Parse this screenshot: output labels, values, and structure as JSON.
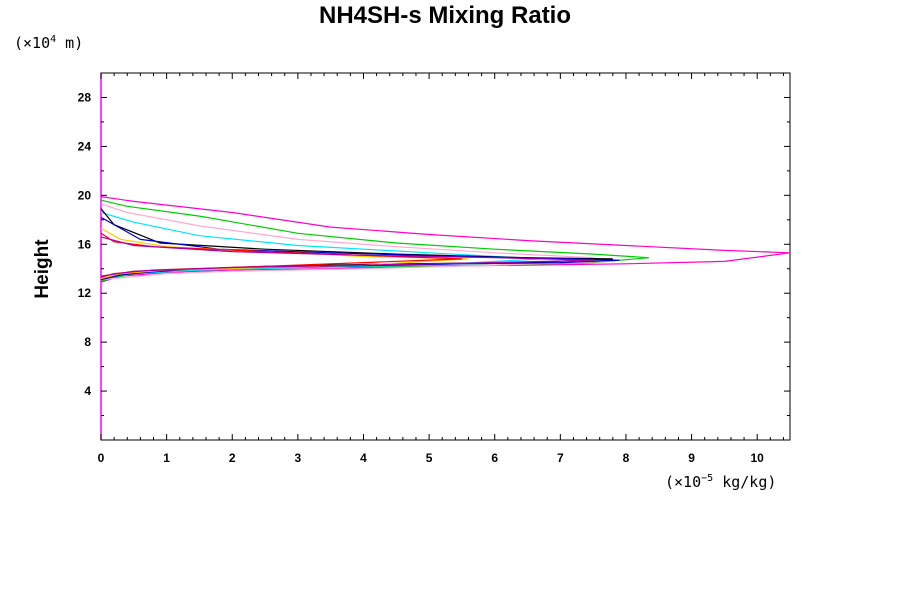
{
  "chart_data": {
    "type": "line",
    "title": "NH4SH-s Mixing Ratio",
    "ylabel": "Height",
    "y_units": {
      "prefix": "(×10",
      "exp": "4",
      "suffix": " m)"
    },
    "x_units": {
      "prefix": "(×10",
      "exp": "−5",
      "suffix": " kg/kg)"
    },
    "xlim": [
      0,
      10.5
    ],
    "ylim": [
      0,
      30
    ],
    "x_ticks": [
      0,
      1,
      2,
      3,
      4,
      5,
      6,
      7,
      8,
      9,
      10
    ],
    "y_ticks": [
      4,
      8,
      12,
      16,
      20,
      24,
      28
    ],
    "x_tick_labels": [
      "0",
      "1",
      "2",
      "3",
      "4",
      "5",
      "6",
      "7",
      "8",
      "9",
      "10"
    ],
    "y_tick_labels": [
      "4",
      "8",
      "12",
      "16",
      "20",
      "24",
      "28"
    ],
    "grid": false,
    "axis_color": "#ff00ff",
    "series": [
      {
        "color": "#ff00cc",
        "x": [
          0,
          0.5,
          2,
          3.5,
          5,
          6.5,
          8,
          9.5,
          10.5,
          9.5,
          8,
          6.5,
          5,
          3.5,
          2,
          1,
          0.3,
          0
        ],
        "y": [
          19.9,
          19.5,
          18.6,
          17.4,
          16.8,
          16.3,
          15.9,
          15.5,
          15.3,
          14.6,
          14.4,
          14.3,
          14.2,
          14.0,
          13.9,
          13.7,
          13.4,
          12.9
        ]
      },
      {
        "color": "#00cc00",
        "x": [
          0,
          0.4,
          1.5,
          3,
          4.5,
          6,
          7.5,
          8.35,
          7.5,
          6,
          4.5,
          3,
          1.5,
          0.5,
          0
        ],
        "y": [
          19.6,
          19.1,
          18.3,
          16.9,
          16.1,
          15.6,
          15.2,
          14.9,
          14.5,
          14.3,
          14.2,
          14.1,
          13.9,
          13.6,
          13.0
        ]
      },
      {
        "color": "#ffaacc",
        "x": [
          0,
          0.4,
          1.5,
          3,
          4.5,
          6,
          7.5,
          7.8,
          6,
          4,
          2,
          1,
          0
        ],
        "y": [
          19.3,
          18.6,
          17.5,
          16.4,
          15.8,
          15.3,
          14.9,
          14.6,
          14.3,
          14.0,
          13.8,
          13.6,
          13.1
        ]
      },
      {
        "color": "#00e5ff",
        "x": [
          0,
          0.5,
          1.5,
          3,
          5,
          6.7,
          5,
          3,
          1.5,
          0.5,
          0
        ],
        "y": [
          18.6,
          17.8,
          16.7,
          15.9,
          15.3,
          14.8,
          14.3,
          14.1,
          13.9,
          13.6,
          13.2
        ]
      },
      {
        "color": "#000000",
        "x": [
          0,
          0.2,
          0.9,
          2.5,
          4.5,
          6.5,
          7.8,
          6.5,
          4.5,
          2.5,
          1,
          0.3,
          0
        ],
        "y": [
          18.9,
          17.6,
          16.1,
          15.6,
          15.2,
          14.9,
          14.8,
          14.5,
          14.4,
          14.2,
          13.9,
          13.5,
          13.2
        ]
      },
      {
        "color": "#0000cc",
        "x": [
          0,
          0.6,
          1.8,
          3.5,
          5.5,
          7.2,
          7.9,
          7,
          5.5,
          3.5,
          1.5,
          0.4,
          0
        ],
        "y": [
          18.2,
          16.4,
          15.6,
          15.3,
          15.0,
          14.8,
          14.7,
          14.5,
          14.4,
          14.2,
          14.0,
          13.6,
          13.1
        ]
      },
      {
        "color": "#ffcc00",
        "x": [
          0,
          0.3,
          1,
          2.5,
          4,
          5.6,
          4,
          2.5,
          1,
          0.3,
          0
        ],
        "y": [
          17.3,
          16.4,
          15.8,
          15.4,
          15.0,
          14.8,
          14.3,
          14.1,
          13.9,
          13.6,
          13.2
        ]
      },
      {
        "color": "#ff0000",
        "x": [
          0,
          0.2,
          0.8,
          2.5,
          4,
          5.5,
          4,
          2.5,
          0.8,
          0.2,
          0
        ],
        "y": [
          16.9,
          16.2,
          15.8,
          15.4,
          15.1,
          14.8,
          14.5,
          14.2,
          13.9,
          13.6,
          13.3
        ]
      },
      {
        "color": "#aa00aa",
        "x": [
          0,
          0.5,
          2,
          4,
          6,
          7.5,
          6,
          4,
          2,
          0.5,
          0
        ],
        "y": [
          16.6,
          15.9,
          15.4,
          15.1,
          14.9,
          14.7,
          14.5,
          14.3,
          14.1,
          13.8,
          13.4
        ]
      }
    ]
  }
}
